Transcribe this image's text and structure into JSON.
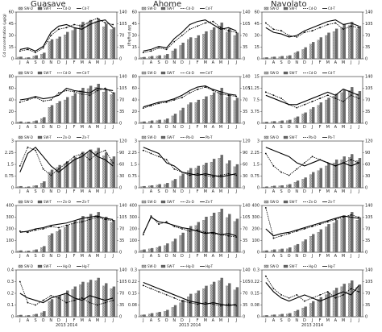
{
  "columns": [
    "Guasave",
    "Ahome",
    "Navolato"
  ],
  "months": [
    "J",
    "A",
    "S",
    "O",
    "N",
    "D",
    "J",
    "F",
    "M",
    "A",
    "M",
    "J",
    "J"
  ],
  "years_label": "2013   2014",
  "chart_data": [
    {
      "type": "bar",
      "row": 0,
      "col": 0,
      "legend": [
        "SW-D",
        "SW-T",
        "Cd-D",
        "Cd-T"
      ],
      "ylabel": "Cd concentration (µg/g)",
      "y2label": "SW (mg/kg)",
      "ylim": [
        0,
        60
      ],
      "y2lim": [
        0,
        140
      ],
      "bar_d": [
        5,
        3,
        8,
        14,
        52,
        60,
        72,
        85,
        102,
        108,
        112,
        96,
        88
      ],
      "bar_t": [
        6,
        4,
        10,
        18,
        58,
        66,
        80,
        92,
        110,
        116,
        120,
        104,
        94
      ],
      "line_d": [
        10,
        12,
        8,
        14,
        30,
        38,
        40,
        44,
        42,
        48,
        52,
        46,
        44
      ],
      "line_t": [
        12,
        14,
        10,
        16,
        34,
        42,
        44,
        40,
        38,
        44,
        48,
        50,
        40
      ]
    },
    {
      "type": "bar",
      "row": 0,
      "col": 1,
      "legend": [
        "SW-D",
        "SW-T",
        "Cd-D",
        "Cd-T"
      ],
      "ylim": [
        0,
        60
      ],
      "y2lim": [
        0,
        140
      ],
      "bar_d": [
        4,
        6,
        8,
        10,
        24,
        40,
        58,
        62,
        74,
        86,
        98,
        80,
        70
      ],
      "bar_t": [
        5,
        8,
        10,
        14,
        30,
        48,
        64,
        70,
        82,
        94,
        108,
        90,
        78
      ],
      "line_d": [
        8,
        10,
        14,
        12,
        22,
        30,
        38,
        42,
        46,
        48,
        40,
        36,
        34
      ],
      "line_t": [
        10,
        12,
        16,
        14,
        26,
        34,
        44,
        48,
        50,
        44,
        38,
        40,
        36
      ]
    },
    {
      "type": "bar",
      "row": 0,
      "col": 2,
      "legend": [
        "SW-D",
        "SW-T",
        "Cd-D",
        "Cd-T"
      ],
      "ylim": [
        0,
        60
      ],
      "y2lim": [
        0,
        140
      ],
      "bar_d": [
        3,
        5,
        6,
        8,
        18,
        28,
        44,
        56,
        70,
        82,
        94,
        100,
        90
      ],
      "bar_t": [
        4,
        6,
        8,
        10,
        22,
        34,
        50,
        64,
        78,
        90,
        104,
        110,
        98
      ],
      "line_d": [
        46,
        38,
        36,
        30,
        28,
        34,
        36,
        40,
        44,
        46,
        38,
        42,
        40
      ],
      "line_t": [
        40,
        34,
        32,
        28,
        30,
        36,
        40,
        44,
        48,
        50,
        44,
        46,
        42
      ]
    },
    {
      "type": "bar",
      "row": 1,
      "col": 0,
      "legend": [
        "SW-D",
        "SW-T",
        "Cd-D",
        "Cd-T"
      ],
      "ylim": [
        0,
        80
      ],
      "y2lim": [
        0,
        140
      ],
      "bar_d": [
        4,
        3,
        6,
        14,
        48,
        60,
        70,
        82,
        98,
        104,
        108,
        94,
        86
      ],
      "bar_t": [
        5,
        4,
        8,
        18,
        54,
        66,
        78,
        90,
        106,
        112,
        118,
        102,
        92
      ],
      "line_d": [
        36,
        40,
        44,
        38,
        40,
        52,
        56,
        54,
        50,
        48,
        56,
        60,
        52
      ],
      "line_t": [
        40,
        42,
        46,
        42,
        44,
        48,
        60,
        56,
        54,
        52,
        60,
        58,
        56
      ]
    },
    {
      "type": "bar",
      "row": 1,
      "col": 1,
      "legend": [
        "SW-D",
        "SW-T",
        "Cd-D",
        "Cd-T"
      ],
      "ylim": [
        0,
        80
      ],
      "y2lim": [
        0,
        140
      ],
      "bar_d": [
        4,
        6,
        8,
        10,
        22,
        38,
        56,
        62,
        72,
        84,
        96,
        78,
        68
      ],
      "bar_t": [
        5,
        8,
        10,
        14,
        28,
        46,
        62,
        70,
        80,
        92,
        106,
        88,
        76
      ],
      "line_d": [
        26,
        30,
        34,
        36,
        40,
        44,
        52,
        58,
        62,
        56,
        50,
        48,
        46
      ],
      "line_t": [
        28,
        32,
        36,
        38,
        42,
        48,
        56,
        62,
        64,
        58,
        54,
        50,
        48
      ]
    },
    {
      "type": "bar",
      "row": 1,
      "col": 2,
      "legend": [
        "SW-D",
        "SW-T",
        "Cd-D",
        "Cd-T"
      ],
      "ylim": [
        0,
        15
      ],
      "y2lim": [
        0,
        140
      ],
      "bar_d": [
        3,
        5,
        6,
        8,
        16,
        28,
        42,
        54,
        70,
        82,
        92,
        98,
        88
      ],
      "bar_t": [
        4,
        6,
        8,
        10,
        20,
        32,
        48,
        62,
        76,
        88,
        100,
        108,
        96
      ],
      "line_d": [
        10,
        9,
        8,
        6,
        5,
        6,
        7,
        8,
        9,
        8,
        7,
        9,
        8
      ],
      "line_t": [
        9,
        8,
        7,
        6,
        6,
        7,
        8,
        9,
        10,
        9,
        11,
        10,
        9
      ]
    },
    {
      "type": "bar",
      "row": 2,
      "col": 0,
      "legend": [
        "SW-D",
        "SW-T",
        "Zn-D",
        "Zn-T"
      ],
      "ylim": [
        0,
        3
      ],
      "y2lim": [
        0,
        120
      ],
      "bar_d": [
        3,
        2,
        5,
        12,
        40,
        52,
        62,
        72,
        84,
        90,
        94,
        82,
        74
      ],
      "bar_t": [
        4,
        3,
        6,
        16,
        46,
        58,
        68,
        78,
        92,
        98,
        102,
        90,
        80
      ],
      "line_d": [
        1.4,
        2.6,
        2.4,
        1.2,
        0.8,
        1.2,
        1.6,
        2.0,
        2.2,
        1.8,
        2.2,
        2.4,
        1.6
      ],
      "line_t": [
        1.0,
        2.2,
        2.6,
        2.0,
        1.4,
        1.0,
        1.4,
        1.8,
        2.0,
        2.4,
        2.0,
        1.8,
        1.4
      ]
    },
    {
      "type": "bar",
      "row": 2,
      "col": 1,
      "legend": [
        "SW-D",
        "SW-T",
        "Pb-D",
        "Pb-T"
      ],
      "ylim": [
        0,
        3
      ],
      "y2lim": [
        0,
        120
      ],
      "bar_d": [
        3,
        5,
        7,
        9,
        18,
        30,
        44,
        50,
        58,
        66,
        76,
        62,
        54
      ],
      "bar_t": [
        4,
        6,
        9,
        12,
        22,
        36,
        50,
        56,
        64,
        74,
        84,
        70,
        60
      ],
      "line_d": [
        2.4,
        2.2,
        2.0,
        1.8,
        1.2,
        1.0,
        0.8,
        0.9,
        0.8,
        0.7,
        0.8,
        0.9,
        0.8
      ],
      "line_t": [
        2.6,
        2.4,
        2.2,
        1.6,
        1.4,
        1.0,
        0.9,
        0.8,
        0.9,
        0.8,
        0.7,
        0.8,
        0.9
      ]
    },
    {
      "type": "bar",
      "row": 2,
      "col": 2,
      "legend": [
        "SW-D",
        "SW-T",
        "Pb-D",
        "Pb-T"
      ],
      "ylim": [
        0,
        3
      ],
      "y2lim": [
        0,
        120
      ],
      "bar_d": [
        2,
        4,
        5,
        7,
        14,
        22,
        34,
        44,
        56,
        64,
        72,
        78,
        70
      ],
      "bar_t": [
        3,
        5,
        6,
        9,
        18,
        26,
        40,
        50,
        62,
        72,
        80,
        86,
        76
      ],
      "line_d": [
        2.2,
        1.4,
        1.0,
        0.8,
        1.2,
        1.6,
        2.0,
        1.8,
        1.6,
        1.4,
        1.6,
        1.8,
        1.6
      ],
      "line_t": [
        2.6,
        2.4,
        2.2,
        2.0,
        1.6,
        1.4,
        1.6,
        1.8,
        1.6,
        1.4,
        1.6,
        1.4,
        1.6
      ]
    },
    {
      "type": "bar",
      "row": 3,
      "col": 0,
      "legend": [
        "SW-D",
        "SW-T",
        "Zn-D",
        "Zn-T"
      ],
      "ylim": [
        0,
        400
      ],
      "y2lim": [
        0,
        140
      ],
      "bar_d": [
        4,
        3,
        6,
        14,
        50,
        62,
        74,
        86,
        100,
        106,
        110,
        98,
        90
      ],
      "bar_t": [
        5,
        4,
        8,
        18,
        56,
        68,
        82,
        94,
        108,
        114,
        120,
        106,
        96
      ],
      "line_d": [
        180,
        170,
        190,
        200,
        220,
        210,
        230,
        250,
        260,
        280,
        300,
        280,
        270
      ],
      "line_t": [
        170,
        180,
        200,
        210,
        230,
        240,
        250,
        270,
        290,
        300,
        310,
        290,
        280
      ]
    },
    {
      "type": "bar",
      "row": 3,
      "col": 1,
      "legend": [
        "SW-D",
        "SW-T",
        "Zn-D",
        "Zn-T"
      ],
      "ylim": [
        0,
        400
      ],
      "y2lim": [
        0,
        140
      ],
      "bar_d": [
        6,
        10,
        14,
        20,
        32,
        50,
        70,
        80,
        96,
        108,
        120,
        104,
        92
      ],
      "bar_t": [
        8,
        12,
        18,
        26,
        40,
        58,
        78,
        90,
        106,
        118,
        130,
        114,
        100
      ],
      "line_d": [
        150,
        310,
        240,
        260,
        220,
        200,
        180,
        190,
        170,
        160,
        150,
        140,
        130
      ],
      "line_t": [
        160,
        300,
        260,
        250,
        230,
        210,
        200,
        180,
        160,
        170,
        150,
        160,
        140
      ]
    },
    {
      "type": "bar",
      "row": 3,
      "col": 2,
      "legend": [
        "SW-D",
        "SW-T",
        "Zn-D",
        "Zn-T"
      ],
      "ylim": [
        0,
        400
      ],
      "y2lim": [
        0,
        140
      ],
      "bar_d": [
        4,
        6,
        8,
        10,
        20,
        32,
        48,
        60,
        76,
        88,
        100,
        110,
        96
      ],
      "bar_t": [
        5,
        8,
        10,
        14,
        24,
        38,
        54,
        68,
        84,
        96,
        110,
        120,
        104
      ],
      "line_d": [
        380,
        120,
        140,
        160,
        180,
        200,
        220,
        240,
        260,
        280,
        300,
        320,
        300
      ],
      "line_t": [
        200,
        140,
        160,
        170,
        190,
        210,
        230,
        250,
        270,
        290,
        310,
        300,
        290
      ]
    },
    {
      "type": "bar",
      "row": 4,
      "col": 0,
      "legend": [
        "SW-D",
        "SW-T",
        "Hg-D",
        "Hg-T"
      ],
      "ylim": [
        0,
        0.4
      ],
      "y2lim": [
        0,
        140
      ],
      "bar_d": [
        4,
        3,
        6,
        12,
        46,
        58,
        70,
        82,
        96,
        102,
        108,
        92,
        84
      ],
      "bar_t": [
        5,
        4,
        8,
        16,
        52,
        64,
        78,
        90,
        104,
        110,
        116,
        100,
        90
      ],
      "line_d": [
        0.3,
        0.12,
        0.1,
        0.14,
        0.18,
        0.16,
        0.12,
        0.14,
        0.16,
        0.12,
        0.1,
        0.12,
        0.14
      ],
      "line_t": [
        0.2,
        0.16,
        0.14,
        0.12,
        0.16,
        0.18,
        0.2,
        0.16,
        0.14,
        0.18,
        0.16,
        0.14,
        0.16
      ]
    },
    {
      "type": "bar",
      "row": 4,
      "col": 1,
      "legend": [
        "SW-D",
        "SW-T",
        "Hg-D",
        "Hg-T"
      ],
      "ylim": [
        0,
        0.3
      ],
      "y2lim": [
        0,
        140
      ],
      "bar_d": [
        5,
        8,
        12,
        16,
        28,
        42,
        60,
        70,
        84,
        96,
        108,
        92,
        80
      ],
      "bar_t": [
        6,
        10,
        14,
        20,
        34,
        50,
        68,
        78,
        92,
        104,
        116,
        100,
        88
      ],
      "line_d": [
        0.2,
        0.18,
        0.16,
        0.14,
        0.12,
        0.1,
        0.09,
        0.08,
        0.09,
        0.08,
        0.07,
        0.08,
        0.07
      ],
      "line_t": [
        0.22,
        0.2,
        0.18,
        0.16,
        0.14,
        0.12,
        0.1,
        0.09,
        0.08,
        0.09,
        0.08,
        0.07,
        0.08
      ]
    },
    {
      "type": "bar",
      "row": 4,
      "col": 2,
      "legend": [
        "SW-D",
        "SW-T",
        "Hg-D",
        "Hg-T"
      ],
      "ylim": [
        0,
        0.3
      ],
      "y2lim": [
        0,
        140
      ],
      "bar_d": [
        3,
        5,
        6,
        8,
        16,
        26,
        40,
        52,
        66,
        78,
        90,
        100,
        88
      ],
      "bar_t": [
        4,
        6,
        8,
        10,
        20,
        30,
        46,
        58,
        72,
        86,
        98,
        108,
        96
      ],
      "line_d": [
        0.26,
        0.18,
        0.14,
        0.12,
        0.14,
        0.1,
        0.12,
        0.14,
        0.16,
        0.12,
        0.14,
        0.18,
        0.16
      ],
      "line_t": [
        0.22,
        0.16,
        0.12,
        0.1,
        0.12,
        0.14,
        0.12,
        0.1,
        0.12,
        0.14,
        0.16,
        0.14,
        0.2
      ]
    }
  ]
}
